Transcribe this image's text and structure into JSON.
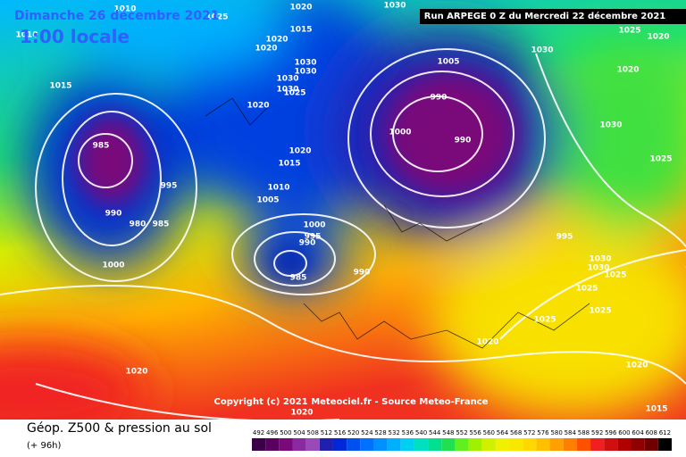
{
  "header": {
    "date": "Dimanche 26 décembre 2021",
    "time": "1:00 locale",
    "run": "Run ARPEGE 0 Z du Mercredi 22 décembre 2021"
  },
  "copyright": "Copyright (c) 2021 Meteociel.fr - Source Meteo-France",
  "footer": {
    "title": "Géop. Z500 & pression au sol",
    "lead": "(+ 96h)"
  },
  "isobar_labels": [
    1010,
    1025,
    1020,
    1030,
    1010,
    1020,
    1015,
    1020,
    1030,
    1030,
    1030,
    1030,
    1025,
    1015,
    1005,
    1030,
    1025,
    1020,
    1020,
    990,
    1020,
    1030,
    985,
    1000,
    990,
    1020,
    1015,
    1025,
    995,
    1010,
    1005,
    990,
    980,
    985,
    1000,
    995,
    990,
    995,
    985,
    990,
    1000,
    1030,
    1030,
    1025,
    1025,
    1025,
    1025,
    1020,
    1020,
    1020,
    1020,
    1015
  ],
  "legend": {
    "values": [
      492,
      496,
      500,
      504,
      508,
      512,
      516,
      520,
      524,
      528,
      532,
      536,
      540,
      544,
      548,
      552,
      556,
      560,
      564,
      568,
      572,
      576,
      580,
      584,
      588,
      592,
      596,
      600,
      604,
      608,
      612
    ],
    "colors": [
      "#3c0046",
      "#5a005f",
      "#7a0a7a",
      "#8b2aa0",
      "#9a4ab8",
      "#2020b0",
      "#0028d8",
      "#0050f0",
      "#0070ff",
      "#0090ff",
      "#00b0ff",
      "#00d0f0",
      "#00e0c0",
      "#00e090",
      "#20e050",
      "#60f020",
      "#a0f000",
      "#d0f000",
      "#f0f000",
      "#f8e800",
      "#ffd800",
      "#ffc000",
      "#ffa000",
      "#ff8000",
      "#ff5000",
      "#f02020",
      "#d01010",
      "#b00000",
      "#900000",
      "#700000",
      "#000000"
    ]
  }
}
